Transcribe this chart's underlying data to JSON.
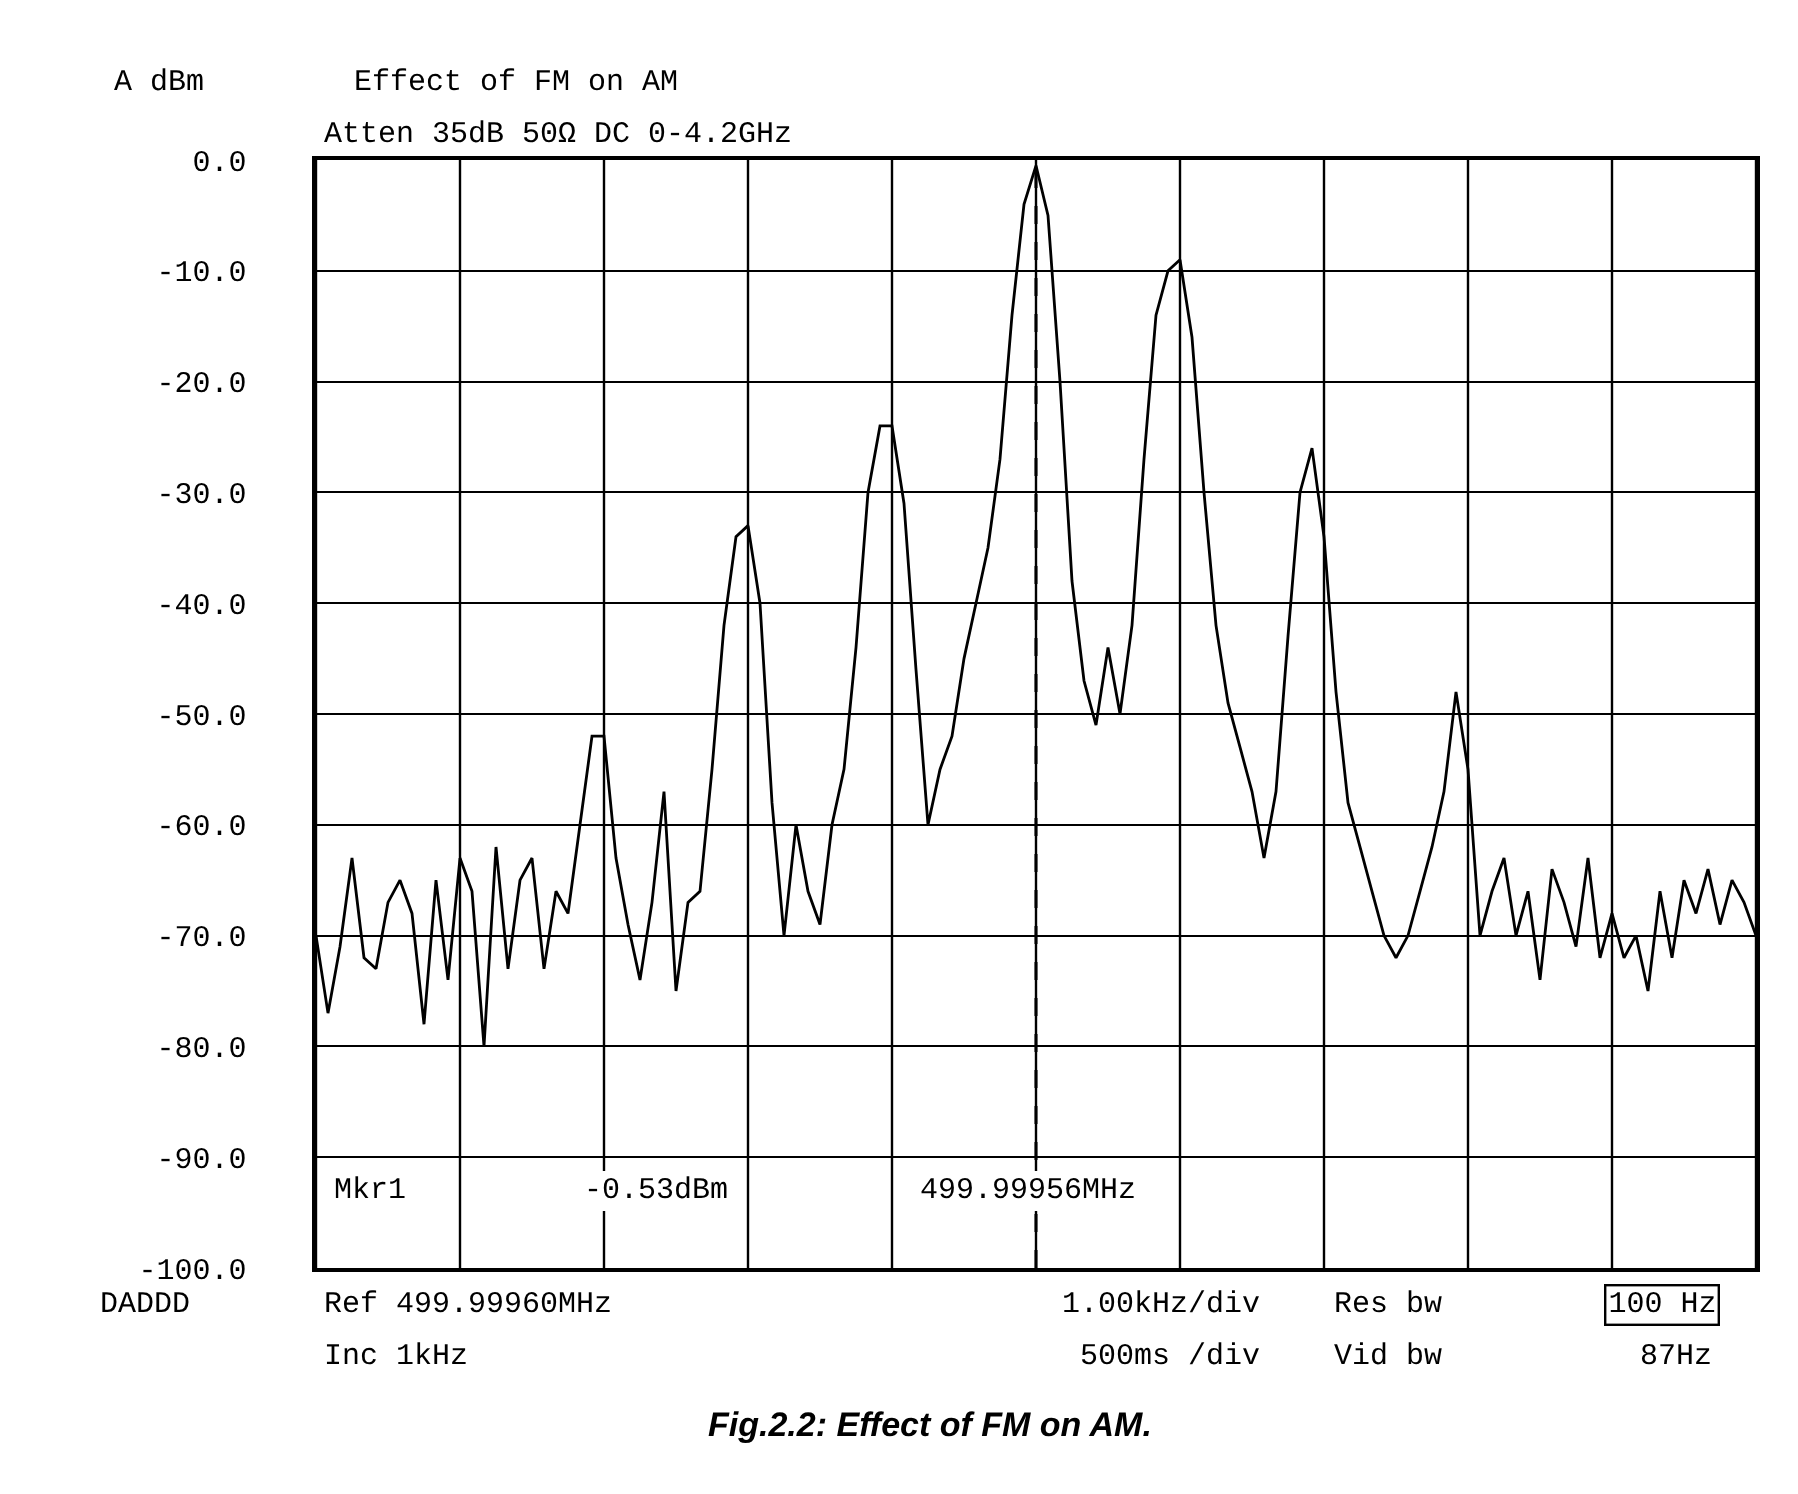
{
  "chart_data": {
    "type": "line",
    "title": "Effect of FM on AM",
    "subtitle": "Atten 35dB 50Ω DC 0-4.2GHz",
    "ylabel": "A dBm",
    "categories": [
      null,
      null,
      null,
      null,
      null,
      null,
      null,
      null,
      null,
      null,
      null,
      null,
      null,
      null,
      null,
      null,
      null,
      null,
      null,
      null,
      null,
      null,
      null,
      null,
      null,
      null,
      null,
      null,
      null,
      null,
      null,
      null,
      null,
      null,
      null,
      null,
      null,
      null,
      null,
      null,
      null,
      null,
      null,
      null,
      null,
      null,
      null,
      null,
      null,
      null,
      null,
      null,
      null,
      null,
      null,
      null,
      null,
      null,
      null,
      null,
      null,
      null,
      null,
      null,
      null,
      null,
      null,
      null,
      null,
      null,
      null,
      null,
      null,
      null,
      null,
      null,
      null,
      null,
      null,
      null,
      null,
      null,
      null,
      null,
      null,
      null,
      null,
      null,
      null,
      null,
      null,
      null,
      null,
      null,
      null,
      null,
      null,
      null,
      null,
      null,
      null,
      null,
      null,
      null,
      null,
      null,
      null,
      null,
      null,
      null,
      null,
      null,
      null,
      null,
      null,
      null,
      null,
      null,
      null,
      null,
      null
    ],
    "series": [
      {
        "color": "#000000",
        "values": [
          -70,
          -77,
          -71,
          -63,
          -72,
          -73,
          -67,
          -65,
          -68,
          -78,
          -65,
          -74,
          -63,
          -66,
          -80,
          -62,
          -73,
          -65,
          -63,
          -73,
          -66,
          -68,
          -60,
          -52,
          -52,
          -63,
          -69,
          -74,
          -67,
          -57,
          -75,
          -67,
          -66,
          -55,
          -42,
          -34,
          -33,
          -40,
          -58,
          -70,
          -60,
          -66,
          -69,
          -60,
          -55,
          -44,
          -30,
          -24,
          -24,
          -31,
          -46,
          -60,
          -55,
          -52,
          -45,
          -40,
          -35,
          -27,
          -14,
          -4,
          -0.5,
          -5,
          -20,
          -38,
          -47,
          -51,
          -44,
          -50,
          -42,
          -27,
          -14,
          -10,
          -9,
          -16,
          -30,
          -42,
          -49,
          -53,
          -57,
          -63,
          -57,
          -43,
          -30,
          -26,
          -34,
          -48,
          -58,
          -62,
          -66,
          -70,
          -72,
          -70,
          -66,
          -62,
          -57,
          -48,
          -55,
          -70,
          -66,
          -63,
          -70,
          -66,
          -74,
          -64,
          -67,
          -71,
          -63,
          -72,
          -68,
          -72,
          -70,
          -75,
          -66,
          -72,
          -65,
          -68,
          -64,
          -69,
          -65,
          -67,
          -70
        ]
      }
    ],
    "ylim": [
      -100,
      0
    ],
    "yticks": [
      {
        "value": 0,
        "label": "0.0"
      },
      {
        "value": -10,
        "label": "-10.0"
      },
      {
        "value": -20,
        "label": "-20.0"
      },
      {
        "value": -30,
        "label": "-30.0"
      },
      {
        "value": -40,
        "label": "-40.0"
      },
      {
        "value": -50,
        "label": "-50.0"
      },
      {
        "value": -60,
        "label": "-60.0"
      },
      {
        "value": -70,
        "label": "-70.0"
      },
      {
        "value": -80,
        "label": "-80.0"
      },
      {
        "value": -90,
        "label": "-90.0"
      },
      {
        "value": -100,
        "label": "-100.0"
      }
    ],
    "grid": true,
    "legend": false,
    "marker": "none",
    "line_style": "solid",
    "annotations": [
      "Mkr1",
      "-0.53dBm",
      "499.99956MHz",
      "DADDD",
      "Ref 499.99960MHz",
      "1.00kHz/div",
      "Res bw",
      "100 Hz",
      "Inc 1kHz",
      "500ms /div",
      "Vid bw",
      "87Hz",
      "Fig.2.2: Effect of FM on AM."
    ]
  }
}
